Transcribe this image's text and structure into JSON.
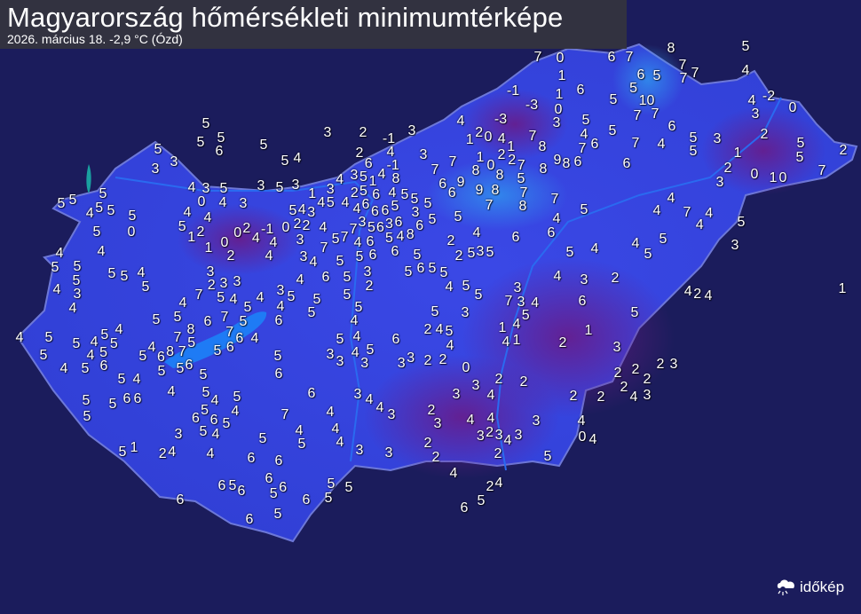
{
  "header": {
    "title": "Magyarország hőmérsékleti minimumtérképe",
    "subtitle": "2026. március 18.  -2,9 °C (Ózd)"
  },
  "logo": {
    "text": "időkép",
    "icon": "cloud-sun-icon"
  },
  "colors": {
    "background": "#1b1c5c",
    "country_fill": "#3b46e8",
    "cold_patch": "#5a1f8c",
    "lake": "#1e7bf5",
    "label": "#ffffff"
  },
  "temperature_labels": [
    "6",
    "7",
    "7",
    "8",
    "5",
    "0",
    "7",
    "7",
    "7",
    "4",
    "1",
    "6",
    "5",
    "5",
    "-1",
    "1",
    "6",
    "5",
    "10",
    "4",
    "-2",
    "0",
    "3",
    "-3",
    "0",
    "7",
    "7",
    "-3",
    "4",
    "3",
    "5",
    "4",
    "5",
    "6",
    "2",
    "7",
    "4",
    "6",
    "7",
    "7",
    "4",
    "5",
    "3",
    "5",
    "5",
    "5",
    "2",
    "1",
    "8",
    "6",
    "2",
    "0",
    "1",
    "0",
    "7",
    "3",
    "9",
    "8",
    "6",
    "8",
    "3",
    "2",
    "-1",
    "3",
    "1",
    "2",
    "0",
    "1",
    "2",
    "4",
    "3",
    "-1",
    "6",
    "7",
    "7",
    "1",
    "0",
    "2",
    "2",
    "7",
    "4",
    "3",
    "5",
    "4",
    "1",
    "8",
    "6",
    "9",
    "8",
    "8",
    "5",
    "1",
    "3",
    "2",
    "5",
    "6",
    "4",
    "5",
    "6",
    "9",
    "8",
    "7",
    "7",
    "4",
    "5",
    "4",
    "6",
    "5",
    "5",
    "5",
    "7",
    "8",
    "4",
    "4",
    "6",
    "6",
    "3",
    "5",
    "5",
    "2",
    "4",
    "3",
    "7",
    "5",
    "6",
    "3",
    "6",
    "6",
    "4",
    "6",
    "6",
    "5",
    "7",
    "4",
    "6",
    "5",
    "4",
    "8",
    "7",
    "5",
    "6",
    "6",
    "5",
    "5",
    "2",
    "2",
    "5",
    "3",
    "5",
    "4",
    "5",
    "4",
    "7",
    "4",
    "4",
    "4",
    "5",
    "5",
    "4",
    "5",
    "5",
    "4",
    "3",
    "4",
    "3",
    "2",
    "4",
    "2",
    "4",
    "1",
    "4",
    "6",
    "5",
    "7",
    "3",
    "3",
    "5",
    "4",
    "1",
    "4",
    "1",
    "1",
    "2",
    "3",
    "2",
    "2",
    "2",
    "2",
    "2",
    "3",
    "2",
    "2",
    "4",
    "3",
    "2",
    "2",
    "3",
    "4",
    "0",
    "4",
    "5",
    "6",
    "5",
    "3",
    "5",
    "6",
    "5",
    "5",
    "4",
    "2",
    "5",
    "5",
    "5",
    "5",
    "4",
    "5",
    "3",
    "2",
    "4",
    "5",
    "4",
    "6",
    "5",
    "4",
    "3",
    "4",
    "5",
    "3",
    "3",
    "3",
    "3",
    "2",
    "2",
    "0",
    "3",
    "4",
    "3",
    "3",
    "4",
    "4",
    "3",
    "4",
    "2",
    "3",
    "4",
    "4",
    "4",
    "4",
    "3",
    "3",
    "2",
    "2",
    "3",
    "2",
    "3",
    "4",
    "3",
    "2",
    "4",
    "2",
    "4",
    "5",
    "6",
    "5",
    "5",
    "5",
    "5",
    "5",
    "5",
    "6",
    "5",
    "5",
    "3",
    "3",
    "5",
    "4",
    "4",
    "3",
    "5",
    "3",
    "5",
    "3",
    "0",
    "4",
    "3",
    "4",
    "4",
    "5",
    "3",
    "5",
    "2",
    "1",
    "0",
    "2",
    "-1",
    "4",
    "0",
    "2",
    "1",
    "0",
    "2",
    "4",
    "4",
    "3",
    "3",
    "4",
    "5",
    "5",
    "5",
    "5",
    "4",
    "5",
    "5",
    "5",
    "0",
    "4",
    "4",
    "5",
    "5",
    "5",
    "5",
    "4",
    "5",
    "5",
    "4",
    "3",
    "4",
    "4",
    "5",
    "5",
    "4",
    "5",
    "4",
    "5",
    "5",
    "4",
    "5",
    "4",
    "5",
    "6",
    "5",
    "4",
    "5",
    "5",
    "6",
    "5",
    "5",
    "1",
    "2",
    "3",
    "2",
    "3",
    "3",
    "7",
    "5",
    "4",
    "4",
    "3",
    "5",
    "4",
    "5",
    "4",
    "5",
    "5",
    "6",
    "7",
    "5",
    "5",
    "4",
    "6",
    "5",
    "8",
    "7",
    "7",
    "6",
    "4",
    "5",
    "4",
    "8",
    "7",
    "5",
    "6",
    "5",
    "6",
    "5",
    "5",
    "6",
    "5",
    "5",
    "6",
    "4",
    "5",
    "6",
    "6",
    "5",
    "4",
    "4",
    "5",
    "7",
    "6",
    "6",
    "5",
    "5",
    "4",
    "3",
    "4",
    "5",
    "5",
    "4",
    "4",
    "6",
    "6",
    "6",
    "6",
    "5",
    "6",
    "5",
    "6",
    "6",
    "6",
    "6",
    "5"
  ]
}
